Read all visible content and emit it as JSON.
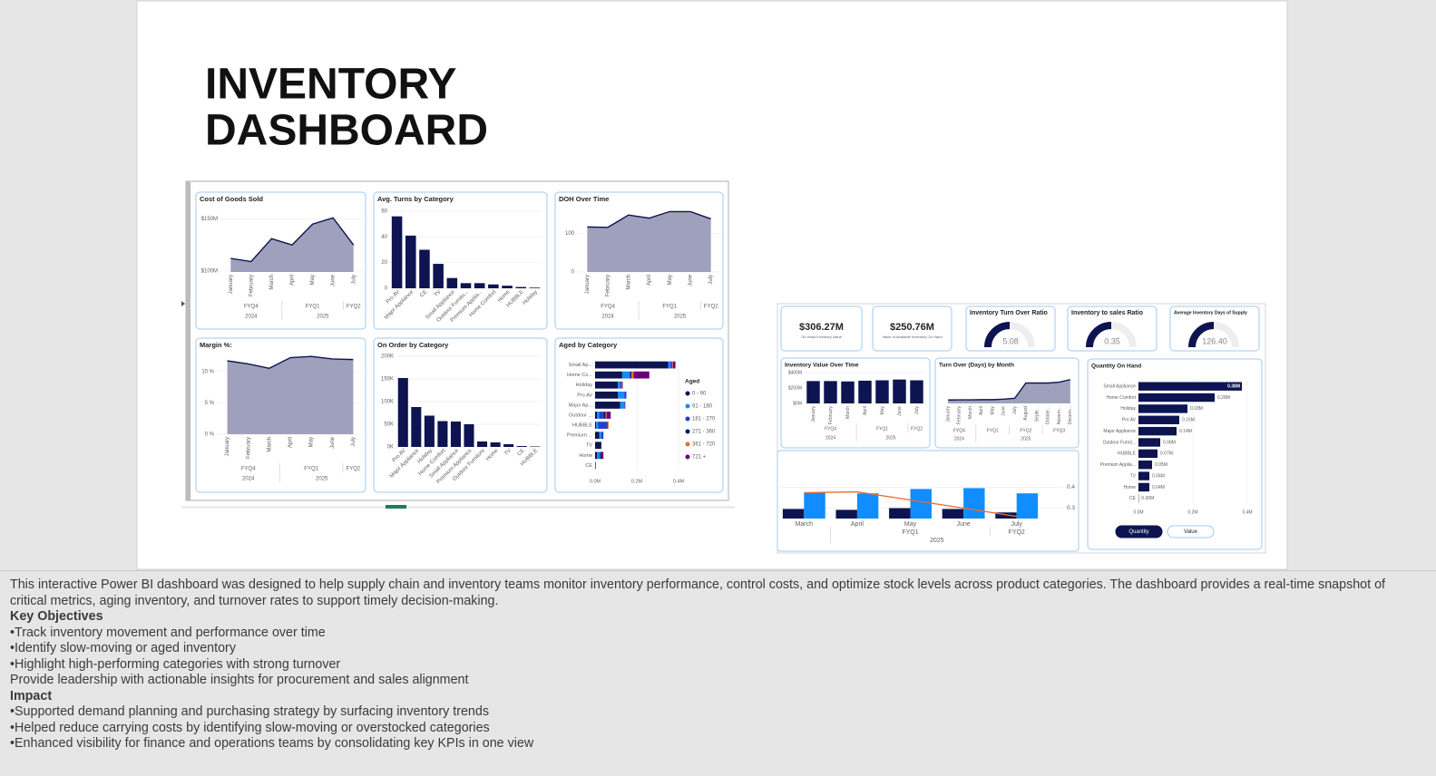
{
  "slide": {
    "title": [
      "INVENTORY",
      "DASHBOARD"
    ]
  },
  "dashboard1": {
    "panels": [
      {
        "title": "Cost of Goods Sold",
        "type": "area",
        "categories": [
          "January",
          "February",
          "March",
          "April",
          "May",
          "June",
          "July"
        ],
        "quarters": [
          "FYQ4",
          "FYQ4",
          "FYQ4",
          "FYQ1",
          "FYQ1",
          "FYQ1",
          "FYQ2"
        ],
        "years": [
          "2024",
          "2024",
          "2024",
          "2025",
          "2025",
          "2025",
          "2025"
        ],
        "values": [
          112,
          109,
          131,
          125,
          145,
          151,
          125
        ],
        "ylim": [
          99,
          160
        ],
        "yticks": [
          {
            "value": 100,
            "label": "$100M"
          },
          {
            "value": 150,
            "label": "$150M"
          }
        ],
        "color": "#0d1451",
        "fill": "#9a9cb8"
      },
      {
        "title": "Avg. Turns by Category",
        "type": "bar",
        "categories": [
          "Pro AV",
          "Major Appliance",
          "CE",
          "TV",
          "Small Appliance",
          "Outdoor Furnitu...",
          "Premium Applia...",
          "Home Comfort",
          "Home",
          "HUBBLE",
          "Holiday"
        ],
        "values": [
          56,
          41,
          30,
          19,
          8,
          4,
          4,
          3,
          2,
          1,
          0.5
        ],
        "ylim": [
          0,
          60
        ],
        "yticks": [
          0,
          20,
          40,
          60
        ],
        "color": "#0d1451"
      },
      {
        "title": "DOH Over Time",
        "type": "area",
        "categories": [
          "January",
          "February",
          "March",
          "April",
          "May",
          "June",
          "July"
        ],
        "quarters": [
          "FYQ4",
          "FYQ4",
          "FYQ4",
          "FYQ1",
          "FYQ1",
          "FYQ1",
          "FYQ2"
        ],
        "years": [
          "2024",
          "2024",
          "2024",
          "2025",
          "2025",
          "2025",
          "2025"
        ],
        "values": [
          117,
          116,
          148,
          140,
          157,
          157,
          138
        ],
        "ylim": [
          0,
          165
        ],
        "yticks": [
          0,
          100
        ],
        "color": "#0d1451",
        "fill": "#9a9cb8"
      },
      {
        "title": "Margin %:",
        "type": "area",
        "categories": [
          "January",
          "February",
          "March",
          "April",
          "May",
          "June",
          "July"
        ],
        "quarters": [
          "FYQ4",
          "FYQ4",
          "FYQ4",
          "FYQ1",
          "FYQ1",
          "FYQ1",
          "FYQ2"
        ],
        "years": [
          "2024",
          "2024",
          "2024",
          "2025",
          "2025",
          "2025",
          "2025"
        ],
        "values": [
          11.7,
          11.2,
          10.5,
          12.2,
          12.4,
          12.0,
          11.9
        ],
        "ylim": [
          0,
          13
        ],
        "yticks": [
          {
            "value": 0,
            "label": "0 %"
          },
          {
            "value": 5,
            "label": "5 %"
          },
          {
            "value": 10,
            "label": "10 %"
          }
        ],
        "color": "#0d1451",
        "fill": "#9a9cb8"
      },
      {
        "title": "On Order by Category",
        "type": "bar",
        "categories": [
          "Pro AV",
          "Major Appliance",
          "Holiday",
          "Home Comfort",
          "Small Appliance",
          "Premium Appliance",
          "Outdoor Furniture",
          "Home",
          "TV",
          "CE",
          "HUBBLE"
        ],
        "values": [
          152,
          88,
          69,
          57,
          56,
          50,
          12,
          10,
          6,
          2,
          1
        ],
        "ylim": [
          0,
          200
        ],
        "yticks": [
          {
            "value": 0,
            "label": "0K"
          },
          {
            "value": 50,
            "label": "50K"
          },
          {
            "value": 100,
            "label": "100K"
          },
          {
            "value": 150,
            "label": "150K"
          },
          {
            "value": 200,
            "label": "200K"
          }
        ],
        "color": "#0d1451"
      },
      {
        "title": "Aged by Category",
        "type": "stacked_hbar",
        "categories": [
          "Small Ap...",
          "Home Co...",
          "Holiday",
          "Pro AV",
          "Major Ap...",
          "Outdoor ...",
          "HUBBLE",
          "Premium ...",
          "TV",
          "Home",
          "CE"
        ],
        "legend_title": "Aged",
        "xlim": [
          0,
          0.45
        ],
        "xticks": [
          {
            "value": 0,
            "label": "0.0M"
          },
          {
            "value": 0.2,
            "label": "0.2M"
          },
          {
            "value": 0.4,
            "label": "0.4M"
          }
        ],
        "series": [
          {
            "name": "0 - 90",
            "color": "#0d1451",
            "values": [
              0.35,
              0.13,
              0.11,
              0.11,
              0.12,
              0.01,
              0.005,
              0.02,
              0.03,
              0.01,
              0.003
            ]
          },
          {
            "name": "91 - 180",
            "color": "#118dff",
            "values": [
              0.01,
              0.035,
              0.01,
              0.03,
              0.02,
              0.01,
              0.01,
              0.01,
              0,
              0.01,
              0
            ]
          },
          {
            "name": "181 - 270",
            "color": "#1f3fcf",
            "values": [
              0.005,
              0.005,
              0.005,
              0.01,
              0.005,
              0.02,
              0.04,
              0.01,
              0,
              0.005,
              0
            ]
          },
          {
            "name": "271 - 360",
            "color": "#0a1a6b",
            "values": [
              0.003,
              0.005,
              0.003,
              0,
              0,
              0.01,
              0.005,
              0,
              0,
              0.005,
              0
            ]
          },
          {
            "name": "361 - 720",
            "color": "#e66c37",
            "values": [
              0.005,
              0.01,
              0.003,
              0,
              0,
              0.005,
              0.005,
              0,
              0,
              0,
              0
            ]
          },
          {
            "name": "721 +",
            "color": "#6b007b",
            "values": [
              0.012,
              0.075,
              0.002,
              0,
              0,
              0.02,
              0,
              0,
              0,
              0.01,
              0
            ]
          }
        ]
      }
    ]
  },
  "dashboard2": {
    "kpis": [
      {
        "value": "$306.27M",
        "caption": "On Hand Inventory Value"
      },
      {
        "value": "$250.76M",
        "caption": "Value of Available Inventory On Hand"
      }
    ],
    "gauges": [
      {
        "title": "Inventory Turn Over Ratio",
        "value": 5.08
      },
      {
        "title": "Inventory to sales Ratio",
        "value": 0.35
      },
      {
        "title": "Average Inventory Days of Supply",
        "value": 126.4,
        "value_label": "126.40"
      }
    ],
    "panels": [
      {
        "title": "Inventory Value Over Time",
        "type": "bar",
        "categories": [
          "January",
          "February",
          "March",
          "April",
          "May",
          "June",
          "July"
        ],
        "quarters": [
          "FYQ4",
          "FYQ4",
          "FYQ4",
          "FYQ1",
          "FYQ1",
          "FYQ1",
          "FYQ2"
        ],
        "years": [
          "2024",
          "2024",
          "2024",
          "2025",
          "2025",
          "2025",
          "2025"
        ],
        "values": [
          290,
          290,
          285,
          295,
          300,
          310,
          300
        ],
        "ylim": [
          0,
          400
        ],
        "yticks": [
          {
            "value": 0,
            "label": "$0M"
          },
          {
            "value": 200,
            "label": "$200M"
          },
          {
            "value": 400,
            "label": "$400M"
          }
        ],
        "color": "#0d1451"
      },
      {
        "title": "Turn Over (Days) by Month",
        "type": "area",
        "categories": [
          "January",
          "February",
          "March",
          "April",
          "May",
          "June",
          "July",
          "August",
          "Septe...",
          "Octobe...",
          "Novem...",
          "Decem..."
        ],
        "quarters": [
          "FYQ4",
          "FYQ4",
          "FYQ4",
          "FYQ1",
          "FYQ1",
          "FYQ1",
          "FYQ2",
          "FYQ2",
          "FYQ2",
          "FYQ3",
          "FYQ3",
          "FYQ3"
        ],
        "years": [
          "2024",
          "2024",
          "2024",
          "2025",
          "2025",
          "2025",
          "2025",
          "2025",
          "2025",
          "2025",
          "2025",
          "2025"
        ],
        "values": [
          20,
          21,
          21,
          22,
          22,
          25,
          30,
          120,
          120,
          120,
          125,
          140
        ],
        "ylim": [
          0,
          160
        ],
        "color": "#0d1451",
        "fill": "#9a9cb8"
      },
      {
        "type": "combo",
        "categories": [
          "March",
          "April",
          "May",
          "June",
          "July"
        ],
        "quarters": [
          null,
          "FYQ1",
          "FYQ1",
          "FYQ1",
          "FYQ2"
        ],
        "years": [
          null,
          "2025",
          "2025",
          "2025",
          "2025"
        ],
        "ylim": [
          0,
          30
        ],
        "y2lim": [
          0.25,
          0.5
        ],
        "y2ticks": [
          0.3,
          0.4
        ],
        "series": [
          {
            "color": "#0d1451",
            "values": [
              5.5,
              5,
              6,
              5.5,
              3.5
            ]
          },
          {
            "color": "#118dff",
            "values": [
              15,
              14.5,
              17,
              17.5,
              14.5
            ]
          },
          {
            "color": "#e66c37",
            "axis": "y2",
            "values": [
              0.374,
              0.378,
              0.339,
              0.3,
              0.26
            ]
          }
        ]
      },
      {
        "title": "Quantity On Hand",
        "type": "hbar",
        "categories": [
          "Small Appliance",
          "Home Comfort",
          "Holiday",
          "Pro AV",
          "Major Appliance",
          "Outdoor Furnit...",
          "HUBBLE",
          "Premium Applia...",
          "TV",
          "Home",
          "CE"
        ],
        "values": [
          0.38,
          0.28,
          0.18,
          0.15,
          0.14,
          0.08,
          0.07,
          0.05,
          0.04,
          0.04,
          0.001
        ],
        "value_labels": [
          "0.38M",
          "0.28M",
          "0.18M",
          "0.15M",
          "0.14M",
          "0.08M",
          "0.07M",
          "0.05M",
          "0.04M",
          "0.04M",
          "0.00M"
        ],
        "xlim": [
          0,
          0.4
        ],
        "xticks": [
          {
            "value": 0,
            "label": "0.0M"
          },
          {
            "value": 0.2,
            "label": "0.2M"
          },
          {
            "value": 0.4,
            "label": "0.4M"
          }
        ],
        "color": "#0d1451"
      }
    ],
    "buttons": [
      "Quantity",
      "Value"
    ]
  },
  "description": {
    "intro": "This interactive Power BI dashboard was designed to help supply chain and inventory teams monitor inventory performance, control costs, and optimize stock levels across product categories. The dashboard provides a real-time snapshot of critical metrics, aging inventory, and turnover rates to support timely decision-making.",
    "sections": [
      {
        "heading": "Key Objectives",
        "items": [
          "•Track inventory movement and performance over time",
          "•Identify slow-moving or aged inventory",
          "•Highlight high-performing categories with strong turnover",
          "Provide leadership with actionable insights for procurement and sales alignment"
        ]
      },
      {
        "heading": "Impact",
        "items": [
          "•Supported demand planning and purchasing strategy by surfacing inventory trends",
          "•Helped reduce carrying costs by identifying slow-moving or overstocked categories",
          "•Enhanced visibility for finance and operations teams by consolidating key KPIs in one view"
        ]
      }
    ]
  }
}
